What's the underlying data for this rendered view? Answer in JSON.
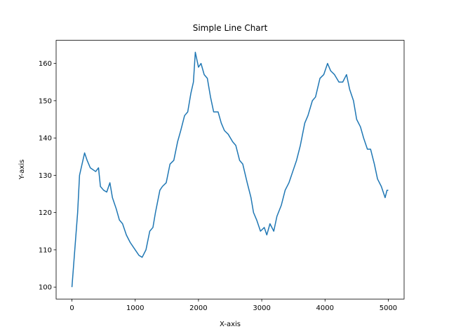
{
  "chart_data": {
    "type": "line",
    "title": "Simple Line Chart",
    "x_label": "X-axis",
    "y_label": "Y-axis",
    "x": [
      0,
      90,
      120,
      200,
      240,
      290,
      375,
      420,
      450,
      500,
      550,
      600,
      640,
      700,
      750,
      800,
      860,
      920,
      1000,
      1060,
      1110,
      1170,
      1230,
      1280,
      1320,
      1390,
      1430,
      1490,
      1550,
      1610,
      1670,
      1720,
      1780,
      1830,
      1880,
      1920,
      1950,
      2000,
      2040,
      2090,
      2140,
      2190,
      2240,
      2310,
      2360,
      2410,
      2470,
      2540,
      2590,
      2650,
      2700,
      2770,
      2830,
      2870,
      2920,
      2980,
      3040,
      3080,
      3130,
      3190,
      3240,
      3310,
      3370,
      3430,
      3490,
      3550,
      3610,
      3680,
      3730,
      3800,
      3850,
      3920,
      3980,
      4040,
      4090,
      4150,
      4220,
      4280,
      4340,
      4390,
      4450,
      4500,
      4560,
      4610,
      4670,
      4720,
      4780,
      4830,
      4890,
      4950,
      4980,
      5000
    ],
    "series": [
      {
        "name": "line",
        "color": "#1f77b4",
        "values": [
          100,
          120,
          130,
          136,
          134,
          132,
          131,
          132,
          127,
          126,
          125.5,
          128,
          124,
          121,
          118,
          117,
          114,
          112,
          110,
          108.5,
          108,
          110,
          115,
          116,
          120,
          126,
          127,
          128,
          133,
          134,
          139,
          142,
          146,
          147,
          152,
          155,
          163,
          159,
          160,
          157,
          156,
          151,
          147,
          147,
          144,
          142,
          141,
          139,
          138,
          134,
          133,
          128,
          124,
          120,
          118,
          115,
          116,
          114,
          117,
          115,
          119,
          122,
          126,
          128,
          131,
          134,
          138,
          144,
          146,
          150,
          151,
          156,
          157,
          160,
          158,
          157,
          155,
          155,
          157,
          153,
          150,
          145,
          143,
          140,
          137,
          137,
          133,
          129,
          127,
          124,
          126,
          126
        ]
      }
    ],
    "xlim": [
      -250,
      5250
    ],
    "ylim": [
      96.8,
      166.2
    ],
    "xticks": [
      0,
      1000,
      2000,
      3000,
      4000,
      5000
    ],
    "yticks": [
      100,
      110,
      120,
      130,
      140,
      150,
      160
    ],
    "grid": false
  }
}
